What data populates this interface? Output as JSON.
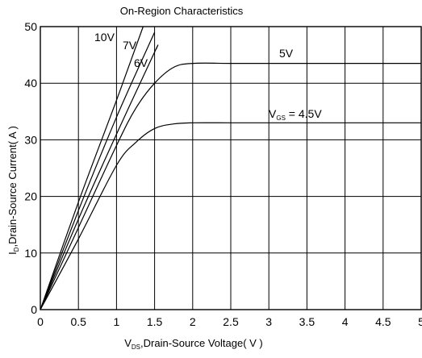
{
  "chart_data": {
    "type": "line",
    "title": "On-Region Characteristics",
    "xlabel": {
      "main": "V",
      "sub": "DS",
      "rest": ",Drain-Source Voltage( V )"
    },
    "ylabel": {
      "main": "I",
      "sub": "D",
      "rest": ",Drain-Source Current( A )"
    },
    "xlim": [
      0,
      5
    ],
    "ylim": [
      0,
      50
    ],
    "x_ticks": [
      "0",
      "0.5",
      "1",
      "1.5",
      "2",
      "2.5",
      "3",
      "3.5",
      "4",
      "4.5",
      "5"
    ],
    "y_ticks": [
      "0",
      "10",
      "20",
      "30",
      "40",
      "50"
    ],
    "grid": true,
    "series": [
      {
        "name": "10V",
        "label": {
          "main": "10V"
        },
        "x": [
          0,
          0.5,
          1.0,
          1.35
        ],
        "y": [
          0,
          19,
          37,
          50
        ]
      },
      {
        "name": "7V",
        "label": {
          "main": "7V"
        },
        "x": [
          0,
          0.5,
          1.0,
          1.5
        ],
        "y": [
          0,
          17.5,
          34,
          49
        ]
      },
      {
        "name": "6V",
        "label": {
          "main": "6V"
        },
        "x": [
          0,
          0.5,
          1.0,
          1.5,
          1.52
        ],
        "y": [
          0,
          16,
          31,
          45.5,
          46
        ]
      },
      {
        "name": "5V",
        "label": {
          "main": "5V"
        },
        "x": [
          0,
          0.5,
          1.0,
          1.25,
          1.5,
          1.75,
          2.0,
          2.5,
          3.0,
          4.0,
          5.0
        ],
        "y": [
          0,
          14.5,
          29,
          35.5,
          40,
          42.8,
          43.5,
          43.5,
          43.5,
          43.5,
          43.5
        ]
      },
      {
        "name": "V_GS = 4.5V",
        "label": {
          "main": "V",
          "sub": "GS",
          "rest": " = 4.5V"
        },
        "x": [
          0,
          0.5,
          1.0,
          1.25,
          1.5,
          1.75,
          2.0,
          2.5,
          3.0,
          4.0,
          5.0
        ],
        "y": [
          0,
          12.5,
          25.5,
          29.5,
          32,
          32.8,
          33,
          33,
          33,
          33,
          33
        ]
      }
    ]
  }
}
